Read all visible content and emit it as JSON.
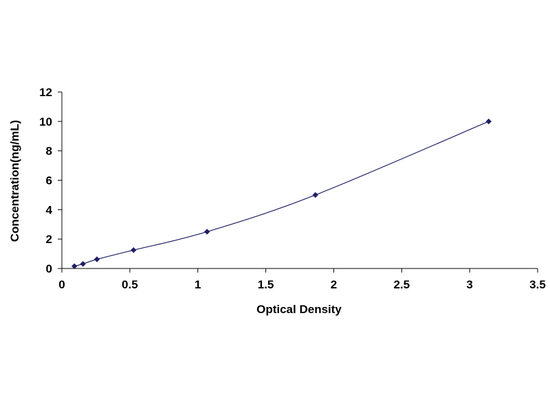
{
  "chart_data": {
    "type": "scatter",
    "title": "",
    "xlabel": "Optical Density",
    "ylabel": "Concentration(ng/mL)",
    "xlim": [
      0,
      3.5
    ],
    "ylim": [
      0,
      12
    ],
    "x_ticks": [
      "0",
      "0.5",
      "1",
      "1.5",
      "2",
      "2.5",
      "3",
      "3.5"
    ],
    "y_ticks": [
      "0",
      "2",
      "4",
      "6",
      "8",
      "10",
      "12"
    ],
    "grid": false,
    "legend": "none",
    "series": [
      {
        "x": [
          0.092,
          0.155,
          0.258,
          0.527,
          1.068,
          1.865,
          3.14
        ],
        "y": [
          0.156,
          0.312,
          0.625,
          1.25,
          2.5,
          5,
          10
        ],
        "marker": "diamond",
        "line": "smooth",
        "color": "#1f1f66"
      }
    ],
    "colors": {
      "axis": "#000000",
      "marker": "#1f1f66",
      "curve": "#1f1f66",
      "background": "#ffffff"
    }
  }
}
